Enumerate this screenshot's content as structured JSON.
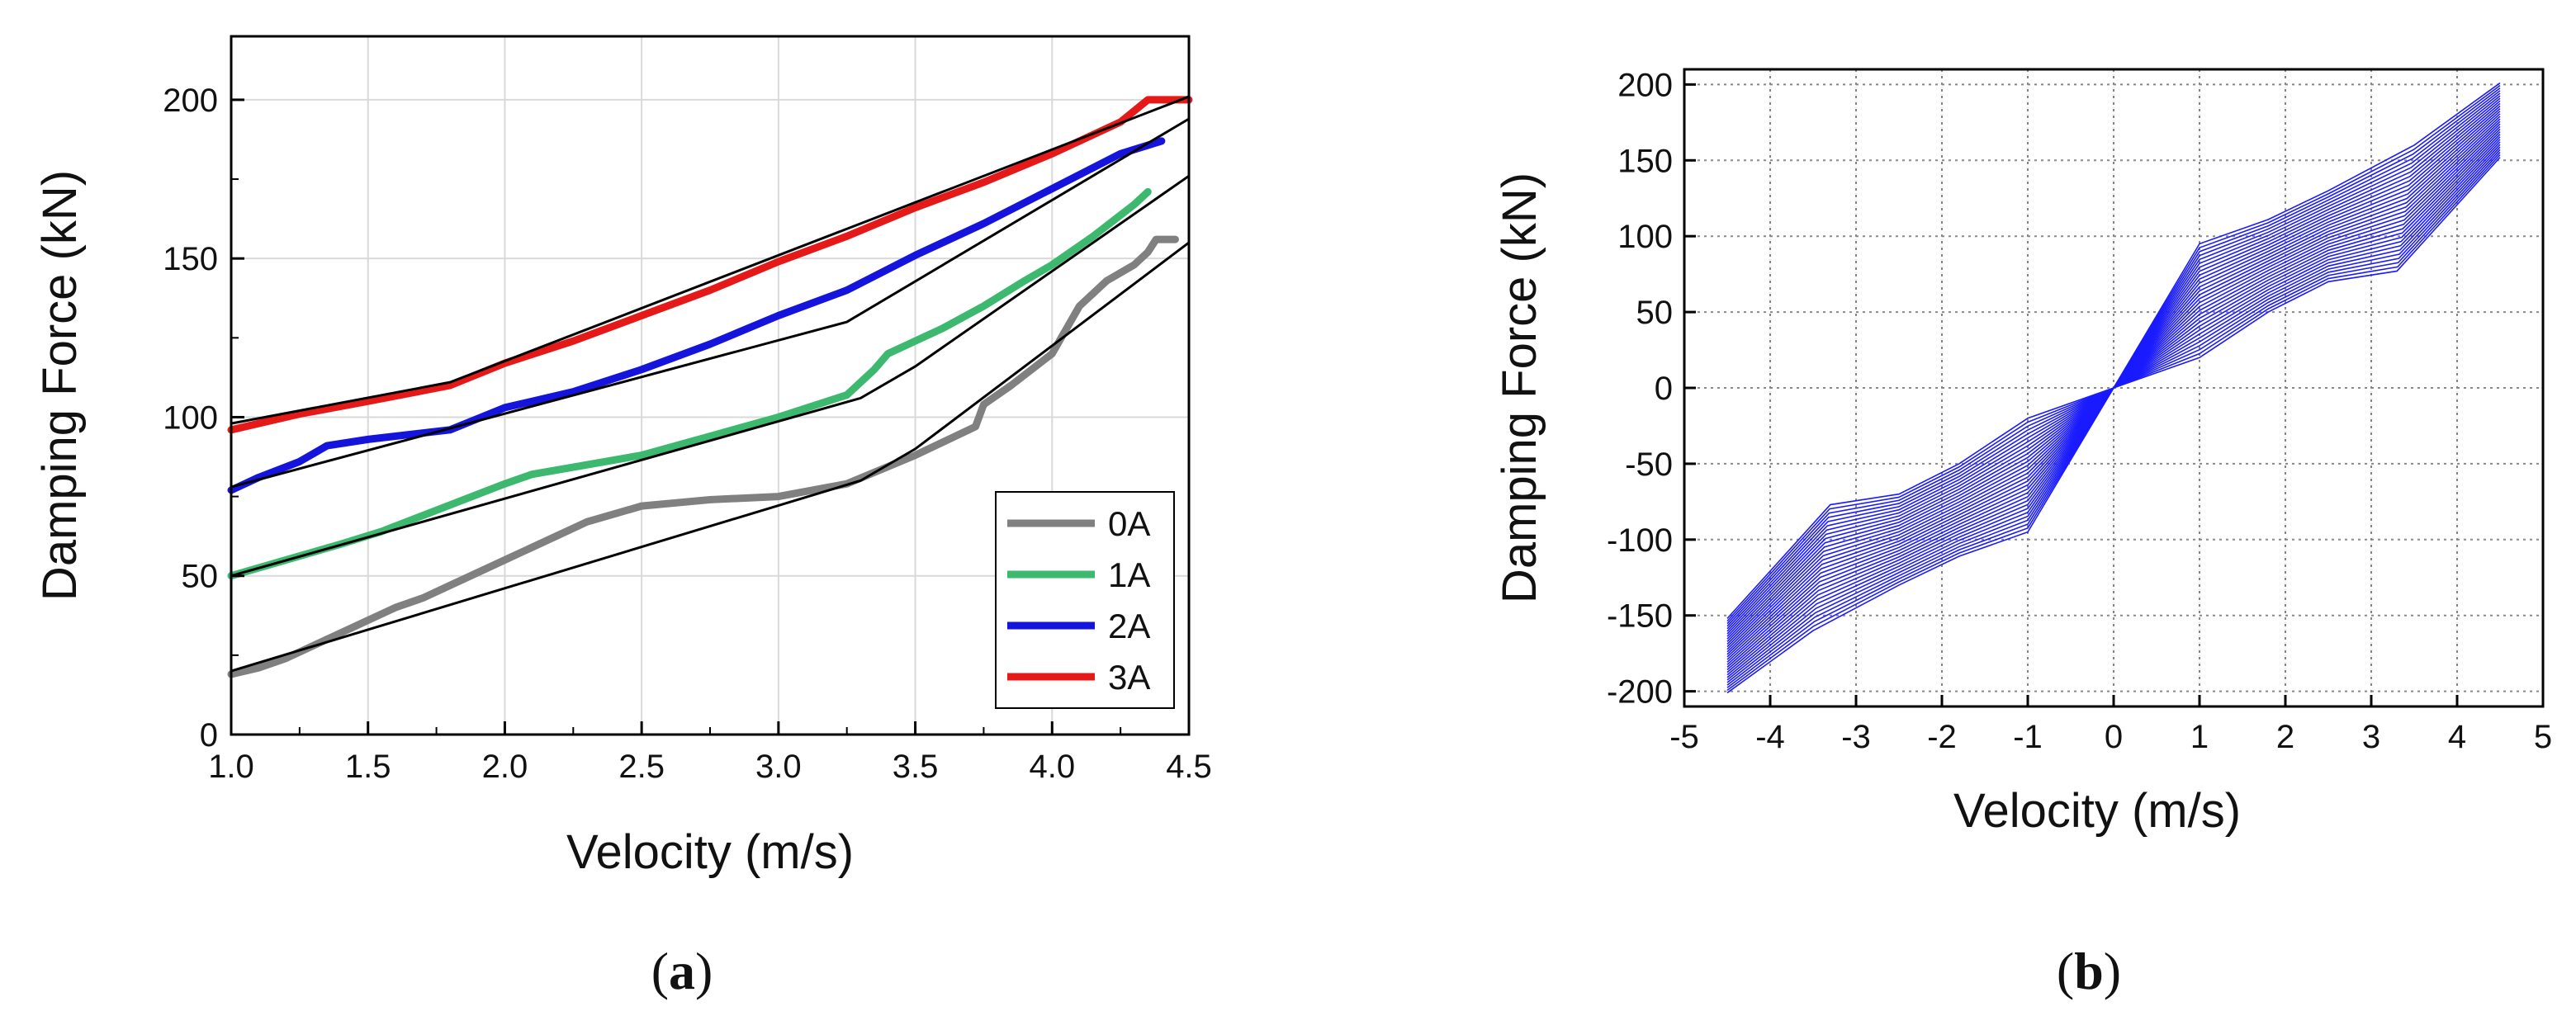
{
  "chart_data": [
    {
      "type": "line",
      "panel_label": {
        "open": "(",
        "letter": "a",
        "close": ")"
      },
      "xlabel": "Velocity (m/s)",
      "ylabel": "Damping Force (kN)",
      "xlim": [
        1.0,
        4.5
      ],
      "ylim": [
        0,
        220
      ],
      "xticks": [
        "1.0",
        "1.5",
        "2.0",
        "2.5",
        "3.0",
        "3.5",
        "4.0",
        "4.5"
      ],
      "yticks": [
        "0",
        "50",
        "100",
        "150",
        "200"
      ],
      "grid": true,
      "legend_position": "bottom-right",
      "series": [
        {
          "name": "0A",
          "color": "#808080",
          "x": [
            1.0,
            1.1,
            1.2,
            1.3,
            1.4,
            1.5,
            1.6,
            1.7,
            1.8,
            1.9,
            2.0,
            2.1,
            2.2,
            2.3,
            2.5,
            2.75,
            3.0,
            3.25,
            3.5,
            3.72,
            3.75,
            3.85,
            4.0,
            4.1,
            4.2,
            4.3,
            4.35,
            4.38,
            4.45
          ],
          "y": [
            19,
            21,
            24,
            28,
            32,
            36,
            40,
            43,
            47,
            51,
            55,
            59,
            63,
            67,
            72,
            74,
            75,
            79,
            88,
            97,
            104,
            110,
            120,
            135,
            143,
            148,
            152,
            156,
            156
          ]
        },
        {
          "name": "1A",
          "color": "#3cb96e",
          "x": [
            1.0,
            1.2,
            1.4,
            1.55,
            1.7,
            1.85,
            2.0,
            2.1,
            2.3,
            2.5,
            2.75,
            3.0,
            3.25,
            3.35,
            3.4,
            3.6,
            3.75,
            3.9,
            4.0,
            4.15,
            4.3,
            4.35
          ],
          "y": [
            50,
            55,
            60,
            64,
            69,
            74,
            79,
            82,
            85,
            88,
            94,
            100,
            107,
            115,
            120,
            128,
            135,
            143,
            148,
            157,
            167,
            171
          ]
        },
        {
          "name": "2A",
          "color": "#1414dc",
          "x": [
            1.0,
            1.1,
            1.25,
            1.35,
            1.5,
            1.8,
            2.0,
            2.25,
            2.5,
            2.75,
            3.0,
            3.25,
            3.5,
            3.75,
            4.0,
            4.25,
            4.4
          ],
          "y": [
            77,
            81,
            86,
            91,
            93,
            96,
            103,
            108,
            115,
            123,
            132,
            140,
            151,
            161,
            172,
            183,
            187
          ]
        },
        {
          "name": "3A",
          "color": "#e61919",
          "x": [
            1.0,
            1.25,
            1.5,
            1.8,
            2.0,
            2.25,
            2.5,
            2.75,
            3.0,
            3.25,
            3.5,
            3.75,
            4.0,
            4.25,
            4.35,
            4.5
          ],
          "y": [
            96,
            101,
            105,
            110,
            117,
            124,
            132,
            140,
            149,
            157,
            166,
            174,
            183,
            193,
            200,
            200
          ]
        }
      ],
      "fit_lines": [
        {
          "color": "#000000",
          "x": [
            1.0,
            3.3,
            3.5,
            4.5
          ],
          "y": [
            20,
            80,
            90,
            155
          ]
        },
        {
          "color": "#000000",
          "x": [
            1.0,
            3.3,
            3.5,
            4.5
          ],
          "y": [
            50,
            106,
            116,
            176
          ]
        },
        {
          "color": "#000000",
          "x": [
            1.0,
            3.25,
            4.5
          ],
          "y": [
            78,
            130,
            194
          ]
        },
        {
          "color": "#000000",
          "x": [
            1.0,
            1.8,
            4.5
          ],
          "y": [
            98,
            111,
            201
          ]
        }
      ]
    },
    {
      "type": "line",
      "panel_label": {
        "open": "(",
        "letter": "b",
        "close": ")"
      },
      "xlabel": "Velocity (m/s)",
      "ylabel": "Damping Force (kN)",
      "xlim": [
        -5,
        5
      ],
      "ylim": [
        -210,
        210
      ],
      "xticks": [
        "-5",
        "-4",
        "-3",
        "-2",
        "-1",
        "0",
        "1",
        "2",
        "3",
        "4",
        "5"
      ],
      "yticks": [
        "200",
        "150",
        "100",
        "50",
        "0",
        "-50",
        "-100",
        "-150",
        "-200"
      ],
      "grid": true,
      "grid_style": "dotted",
      "line_color": "#1a1aff",
      "family_count": 30,
      "upper_curve": {
        "x": [
          0,
          1,
          1.8,
          2.5,
          3.5,
          4.5
        ],
        "y": [
          0,
          95,
          111,
          130,
          160,
          201
        ]
      },
      "lower_curve": {
        "x": [
          0,
          1,
          1.8,
          2.5,
          3.3,
          3.5,
          4.5
        ],
        "y": [
          0,
          20,
          50,
          70,
          77,
          80,
          152
        ]
      }
    }
  ]
}
